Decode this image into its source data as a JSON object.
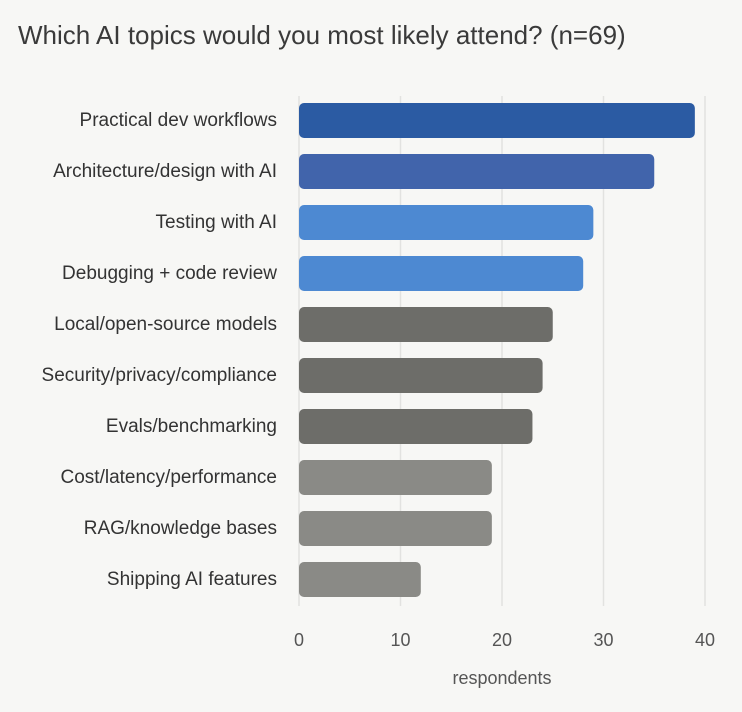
{
  "chart_data": {
    "type": "bar",
    "orientation": "horizontal",
    "title": "Which AI topics would you most likely attend? (n=69)",
    "xlabel": "respondents",
    "ylabel": "",
    "xlim": [
      0,
      40
    ],
    "xticks": [
      0,
      10,
      20,
      30,
      40
    ],
    "grid": true,
    "categories": [
      "Practical dev workflows",
      "Architecture/design with AI",
      "Testing with AI",
      "Debugging + code review",
      "Local/open-source models",
      "Security/privacy/compliance",
      "Evals/benchmarking",
      "Cost/latency/performance",
      "RAG/knowledge bases",
      "Shipping AI features"
    ],
    "values": [
      39,
      35,
      29,
      28,
      25,
      24,
      23,
      19,
      19,
      12
    ],
    "colors": [
      "#2b5ba3",
      "#4164ab",
      "#4d89d2",
      "#4d89d2",
      "#6d6d69",
      "#6d6d69",
      "#6d6d69",
      "#8a8a86",
      "#8a8a86",
      "#8a8a86"
    ],
    "gridColor": "#e2e2e0"
  }
}
